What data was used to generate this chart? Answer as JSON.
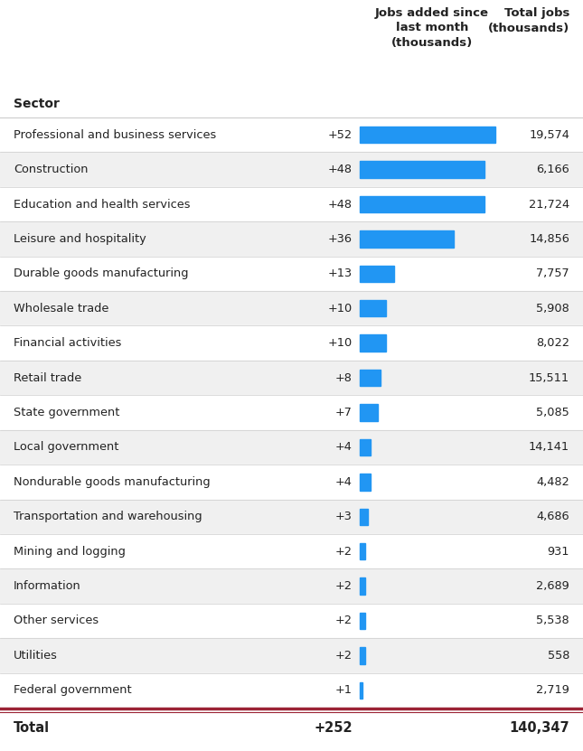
{
  "sectors": [
    "Professional and business services",
    "Construction",
    "Education and health services",
    "Leisure and hospitality",
    "Durable goods manufacturing",
    "Wholesale trade",
    "Financial activities",
    "Retail trade",
    "State government",
    "Local government",
    "Nondurable goods manufacturing",
    "Transportation and warehousing",
    "Mining and logging",
    "Information",
    "Other services",
    "Utilities",
    "Federal government"
  ],
  "jobs_added": [
    52,
    48,
    48,
    36,
    13,
    10,
    10,
    8,
    7,
    4,
    4,
    3,
    2,
    2,
    2,
    2,
    1
  ],
  "total_jobs": [
    19574,
    6166,
    21724,
    14856,
    7757,
    5908,
    8022,
    15511,
    5085,
    14141,
    4482,
    4686,
    931,
    2689,
    5538,
    558,
    2719
  ],
  "bar_color": "#2196F3",
  "background_color": "#ffffff",
  "text_color": "#222222",
  "row_divider_color": "#cccccc",
  "row_alt_color": "#f0f0f0",
  "total_divider_color_top": "#9b2335",
  "total_divider_color_bot": "#9b2335",
  "total_added": 252,
  "total_total": 140347,
  "col_header_jobs_added": "Jobs added since\nlast month\n(thousands)",
  "col_header_total": "Total jobs\n(thousands)",
  "col_header_sector": "Sector"
}
